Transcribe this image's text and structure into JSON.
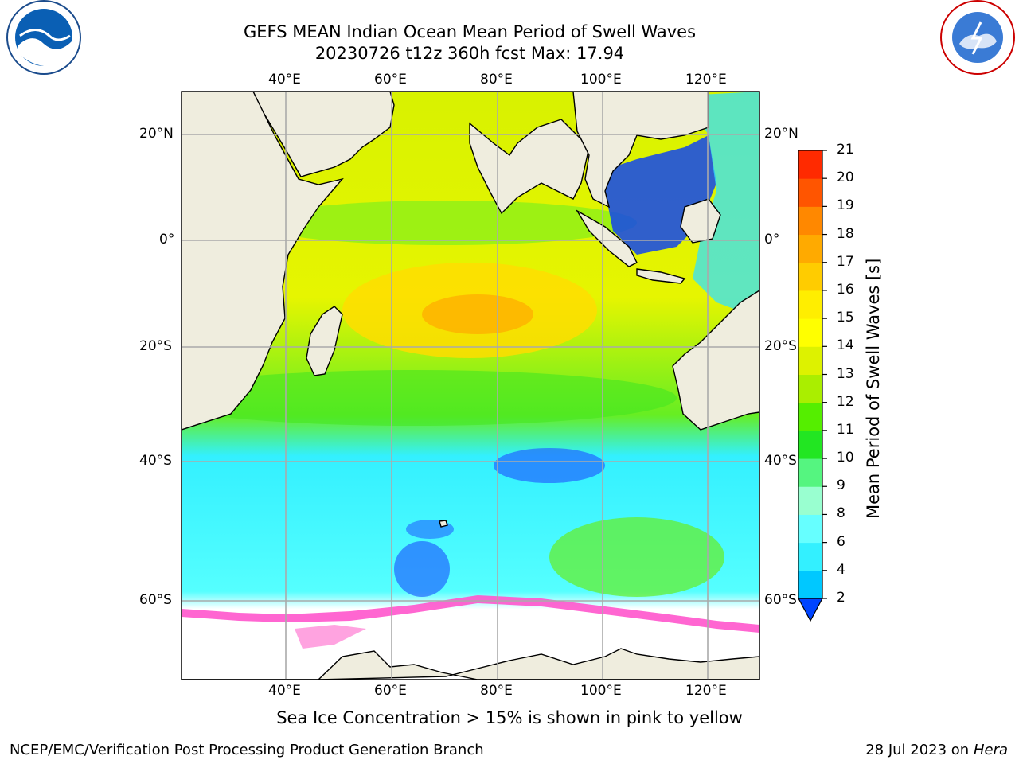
{
  "header": {
    "title_line1": "GEFS MEAN Indian Ocean Mean Period of Swell Waves",
    "title_line2": "20230726 t12z 360h fcst   Max: 17.94"
  },
  "map": {
    "lon_labels": [
      "40°E",
      "60°E",
      "80°E",
      "100°E",
      "120°E"
    ],
    "lat_labels": [
      "20°N",
      "0°",
      "20°S",
      "40°S",
      "60°S"
    ],
    "logos": {
      "left": "noaa-logo",
      "right": "nws-logo"
    }
  },
  "colorbar": {
    "title": "Mean Period of Swell Waves [s]",
    "ticks": [
      "2",
      "4",
      "6",
      "8",
      "9",
      "10",
      "11",
      "12",
      "13",
      "14",
      "15",
      "16",
      "17",
      "18",
      "19",
      "20",
      "21"
    ],
    "colors": [
      "#0044ff",
      "#00c8ff",
      "#33f0ff",
      "#66ffff",
      "#99ffd0",
      "#55f580",
      "#22e622",
      "#55ee00",
      "#aaee00",
      "#ddf200",
      "#ffff00",
      "#ffee00",
      "#ffcc00",
      "#ffaa00",
      "#ff8800",
      "#ff5500",
      "#ff2a00",
      "#ff0000"
    ],
    "extend": "min"
  },
  "footer": {
    "note": "Sea Ice Concentration > 15% is shown in pink to yellow",
    "left": "NCEP/EMC/Verification Post Processing Product Generation Branch",
    "right_prefix": "28 Jul 2023 on ",
    "right_host": "Hera"
  }
}
